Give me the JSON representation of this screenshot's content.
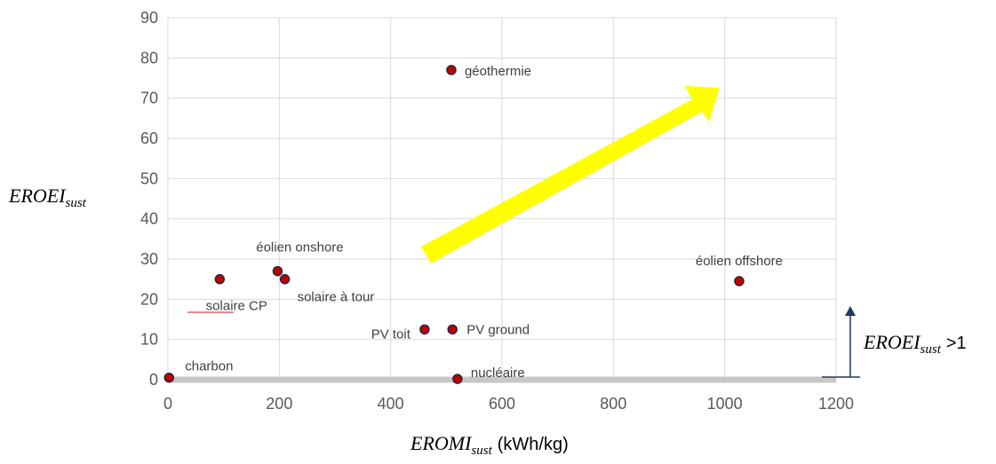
{
  "chart_data": {
    "type": "scatter",
    "xlim": [
      0,
      1200
    ],
    "ylim": [
      0,
      90
    ],
    "x_ticks": [
      "0",
      "200",
      "400",
      "600",
      "800",
      "1000",
      "1200"
    ],
    "y_ticks": [
      "0",
      "10",
      "20",
      "30",
      "40",
      "50",
      "60",
      "70",
      "80",
      "90"
    ],
    "grid": true,
    "xlabel": {
      "main": "EROMI",
      "sub": "sust",
      "unit": "(kWh/kg)"
    },
    "ylabel": {
      "main": "EROEI",
      "sub": "sust"
    },
    "points": [
      {
        "label": "charbon",
        "x": 2,
        "y": 0.5
      },
      {
        "label": "solaire CP",
        "x": 93,
        "y": 25
      },
      {
        "label": "éolien onshore",
        "x": 197,
        "y": 27
      },
      {
        "label": "solaire à tour",
        "x": 210,
        "y": 25
      },
      {
        "label": "PV toit",
        "x": 461,
        "y": 12.5
      },
      {
        "label": "PV ground",
        "x": 511,
        "y": 12.5
      },
      {
        "label": "nucléaire",
        "x": 520,
        "y": 0.2
      },
      {
        "label": "géothermie",
        "x": 509,
        "y": 77
      },
      {
        "label": "éolien offshore",
        "x": 1026,
        "y": 24.5
      }
    ],
    "threshold_annotation": {
      "main": "EROEI",
      "sub": "sust",
      "suffix": ">1"
    },
    "colors": {
      "marker_fill": "#c00000",
      "marker_edge": "#1f2a44",
      "arrow": "#ffff00",
      "baseline_band": "#c8c8c8",
      "grid": "#d9d9d9",
      "threshold_arrow": "#1f3864"
    }
  }
}
